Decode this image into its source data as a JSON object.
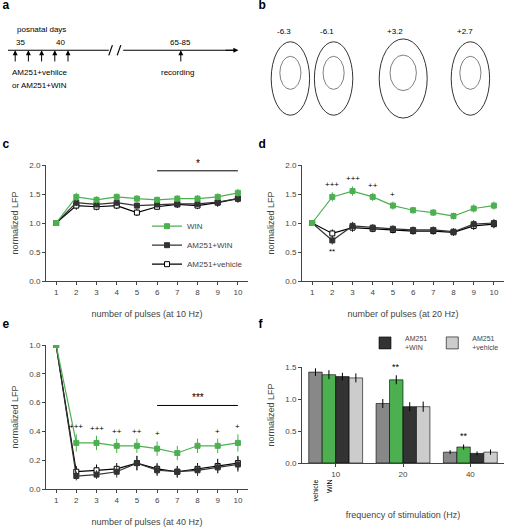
{
  "chart_data": [
    {
      "type": "diagram",
      "title": "a",
      "annotations": [
        "posnatal days",
        "35",
        "40",
        "65-85",
        "AM251+vehilce",
        "or AM251+WIN",
        "recording"
      ]
    },
    {
      "type": "diagram",
      "title": "b",
      "annotations": [
        "-6.3",
        "-6.1",
        "+3.2",
        "+2.7"
      ]
    },
    {
      "type": "line",
      "title": "c",
      "x": [
        1,
        2,
        3,
        4,
        5,
        6,
        7,
        8,
        9,
        10
      ],
      "series": [
        {
          "name": "AM251+vehicle",
          "color": "#000000",
          "marker": "square-open",
          "values": [
            1.0,
            1.3,
            1.28,
            1.3,
            1.18,
            1.28,
            1.32,
            1.3,
            1.35,
            1.42
          ],
          "errors": [
            0.0,
            0.07,
            0.06,
            0.06,
            0.06,
            0.05,
            0.06,
            0.06,
            0.07,
            0.07
          ]
        },
        {
          "name": "AM251+WIN",
          "color": "#333333",
          "marker": "square",
          "values": [
            1.0,
            1.35,
            1.32,
            1.35,
            1.3,
            1.32,
            1.33,
            1.33,
            1.36,
            1.42
          ],
          "errors": [
            0.0,
            0.06,
            0.05,
            0.05,
            0.05,
            0.05,
            0.05,
            0.05,
            0.05,
            0.06
          ]
        },
        {
          "name": "WIN",
          "color": "#4caf50",
          "marker": "square",
          "values": [
            1.0,
            1.45,
            1.4,
            1.45,
            1.42,
            1.4,
            1.42,
            1.42,
            1.45,
            1.52
          ],
          "errors": [
            0.0,
            0.07,
            0.06,
            0.06,
            0.06,
            0.05,
            0.06,
            0.06,
            0.06,
            0.07
          ]
        }
      ],
      "xlabel": "number of pulses (at 10 Hz)",
      "ylabel": "normalized LFP",
      "xlim": [
        0.5,
        10.5
      ],
      "xticks": [
        1,
        2,
        3,
        4,
        5,
        6,
        7,
        8,
        9,
        10
      ],
      "ylim": [
        0.0,
        2.0
      ],
      "yticks": [
        {
          "value": 0.0,
          "label": "0.0"
        },
        0.5,
        {
          "value": 1.0,
          "label": "1.0"
        },
        1.5,
        {
          "value": 2.0,
          "label": "2.0"
        }
      ],
      "grid": false,
      "legend": "lower right",
      "annotations": [
        {
          "text": "*",
          "x": [
            6,
            10
          ],
          "y": 1.9
        }
      ]
    },
    {
      "type": "line",
      "title": "d",
      "x": [
        1,
        2,
        3,
        4,
        5,
        6,
        7,
        8,
        9,
        10
      ],
      "series": [
        {
          "color": "#000000",
          "marker": "square-open",
          "values": [
            1.0,
            0.82,
            0.92,
            0.9,
            0.88,
            0.86,
            0.86,
            0.84,
            0.95,
            0.98
          ],
          "errors": [
            0.0,
            0.07,
            0.07,
            0.06,
            0.06,
            0.06,
            0.06,
            0.06,
            0.07,
            0.07
          ]
        },
        {
          "color": "#333333",
          "marker": "square",
          "values": [
            1.0,
            0.7,
            0.95,
            0.92,
            0.9,
            0.88,
            0.88,
            0.85,
            0.98,
            1.0
          ],
          "errors": [
            0.0,
            0.07,
            0.07,
            0.06,
            0.06,
            0.06,
            0.06,
            0.06,
            0.07,
            0.07
          ]
        },
        {
          "color": "#4caf50",
          "marker": "square",
          "values": [
            1.0,
            1.45,
            1.55,
            1.45,
            1.3,
            1.22,
            1.18,
            1.12,
            1.25,
            1.3
          ],
          "errors": [
            0.0,
            0.08,
            0.08,
            0.07,
            0.07,
            0.06,
            0.06,
            0.06,
            0.07,
            0.07
          ]
        }
      ],
      "xlabel": "number of pulses (at 20 Hz)",
      "ylabel": "normalized LFP",
      "xlim": [
        0.5,
        10.5
      ],
      "xticks": [
        1,
        2,
        3,
        4,
        5,
        6,
        7,
        8,
        9,
        10
      ],
      "ylim": [
        0.0,
        2.0
      ],
      "yticks": [
        {
          "value": 0.0,
          "label": "0.0"
        },
        0.5,
        {
          "value": 1.0,
          "label": "1.0"
        },
        1.5,
        {
          "value": 2.0,
          "label": "2.0"
        }
      ],
      "grid": false,
      "annotations": [
        {
          "text": "+++",
          "x": [
            2,
            3
          ],
          "series": 2,
          "position": "above"
        },
        {
          "text": "++",
          "x": [
            4
          ],
          "series": 2,
          "position": "above"
        },
        {
          "text": "+",
          "x": [
            5
          ],
          "series": 2,
          "position": "above"
        },
        {
          "text": "**",
          "x": [
            2
          ],
          "series": 1,
          "position": "below"
        }
      ]
    },
    {
      "type": "line",
      "title": "e",
      "x": [
        1,
        2,
        3,
        4,
        5,
        6,
        7,
        8,
        9,
        10
      ],
      "series": [
        {
          "color": "#000000",
          "marker": "square-open",
          "values": [
            1.0,
            0.12,
            0.13,
            0.14,
            0.18,
            0.14,
            0.12,
            0.14,
            0.16,
            0.18
          ],
          "errors": [
            0.0,
            0.04,
            0.04,
            0.04,
            0.05,
            0.04,
            0.04,
            0.04,
            0.05,
            0.05
          ]
        },
        {
          "color": "#333333",
          "marker": "square",
          "values": [
            1.0,
            0.09,
            0.1,
            0.12,
            0.18,
            0.13,
            0.12,
            0.13,
            0.15,
            0.17
          ],
          "errors": [
            0.0,
            0.03,
            0.03,
            0.04,
            0.05,
            0.04,
            0.04,
            0.04,
            0.04,
            0.05
          ]
        },
        {
          "color": "#4caf50",
          "marker": "square",
          "values": [
            1.0,
            0.32,
            0.32,
            0.3,
            0.3,
            0.28,
            0.25,
            0.3,
            0.3,
            0.32
          ],
          "errors": [
            0.0,
            0.06,
            0.05,
            0.05,
            0.05,
            0.05,
            0.05,
            0.05,
            0.05,
            0.06
          ]
        }
      ],
      "xlabel": "number of pulses (at 40 Hz)",
      "ylabel": "normalized LFP",
      "xlim": [
        0.5,
        10.5
      ],
      "xticks": [
        1,
        2,
        3,
        4,
        5,
        6,
        7,
        8,
        9,
        10
      ],
      "ylim": [
        0.0,
        1.0
      ],
      "yticks": [
        {
          "value": 0.0,
          "label": "0.0"
        },
        0.2,
        0.4,
        0.6,
        0.8,
        {
          "value": 1.0,
          "label": "1.0"
        }
      ],
      "grid": false,
      "annotations": [
        {
          "text": "***",
          "x": [
            6,
            10
          ],
          "y": 0.58
        },
        {
          "text": "+++",
          "x": [
            2,
            3
          ],
          "series": 2,
          "position": "above"
        },
        {
          "text": "++",
          "x": [
            4,
            5
          ],
          "series": 2,
          "position": "above"
        },
        {
          "text": "+",
          "x": [
            6,
            9,
            10
          ],
          "series": 2,
          "position": "above"
        }
      ]
    },
    {
      "type": "bar",
      "title": "f",
      "categories": [
        "10",
        "20",
        "40"
      ],
      "series": [
        {
          "color": "#888888",
          "values": [
            1.42,
            0.93,
            0.17
          ],
          "errors": [
            0.06,
            0.07,
            0.03
          ]
        },
        {
          "color": "#4caf50",
          "values": [
            1.38,
            1.3,
            0.25
          ],
          "errors": [
            0.07,
            0.07,
            0.04
          ]
        },
        {
          "name": "AM251\n+WIN",
          "color": "#333333",
          "values": [
            1.35,
            0.88,
            0.15
          ],
          "errors": [
            0.06,
            0.07,
            0.03
          ]
        },
        {
          "name": "AM251\n+vehicle",
          "color": "#cccccc",
          "values": [
            1.33,
            0.88,
            0.17
          ],
          "errors": [
            0.07,
            0.08,
            0.04
          ]
        }
      ],
      "xlabel": "frequency of stimulation (Hz)",
      "ylabel": "normalized LFP",
      "ylim": [
        0.0,
        1.5
      ],
      "yticks": [
        {
          "value": 0.0,
          "label": "0.0"
        },
        0.5,
        {
          "value": 1.0,
          "label": "1.0"
        },
        1.5
      ],
      "grid": false,
      "legend": "upper right",
      "annotations": [
        {
          "text": "**",
          "category": "20",
          "series": 1,
          "position": "above"
        },
        {
          "text": "**",
          "category": "40",
          "series": 1,
          "position": "above"
        },
        {
          "text": "vehicle",
          "category": "10",
          "series": 0,
          "position": "below"
        },
        {
          "text": "WIN",
          "category": "10",
          "series": 1,
          "position": "below"
        }
      ]
    }
  ]
}
